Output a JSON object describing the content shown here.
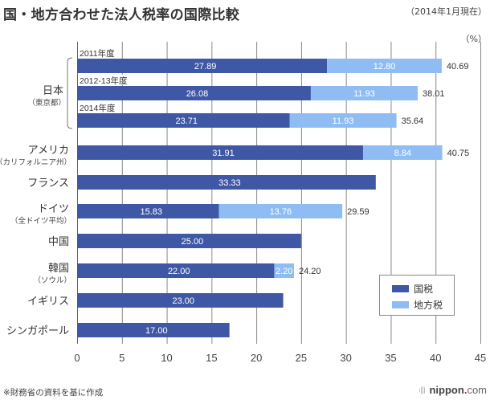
{
  "header": {
    "title": "国・地方合わせた法人税率の国際比較",
    "as_of": "（2014年1月現在）",
    "unit": "（%）"
  },
  "footer": {
    "source_note": "※財務省の資料を基に作成",
    "logo_brand": "nippon",
    "logo_dot": ".",
    "logo_tld": "com"
  },
  "colors": {
    "national": "#3f58a5",
    "local": "#8fbdf3",
    "grid": "#888888",
    "text": "#333333"
  },
  "chart_data": {
    "type": "bar",
    "orientation": "horizontal",
    "stacked": true,
    "title": "国・地方合わせた法人税率の国際比較",
    "subtitle": "（2014年1月現在）",
    "xlabel": "",
    "ylabel": "",
    "unit_label": "（%）",
    "xlim": [
      0,
      45
    ],
    "x_ticks": [
      0,
      5,
      10,
      15,
      20,
      25,
      30,
      35,
      40,
      45
    ],
    "grid": true,
    "legend": {
      "placement": "bottom-right",
      "entries": [
        {
          "key": "national",
          "label": "国税"
        },
        {
          "key": "local",
          "label": "地方税"
        }
      ]
    },
    "groups": [
      {
        "label": "日本",
        "sublabel": "（東京都）",
        "bracket": true,
        "rows": [
          0,
          1,
          2
        ]
      },
      {
        "label": "アメリカ",
        "sublabel": "（カリフォルニア州）",
        "rows": [
          3
        ]
      },
      {
        "label": "フランス",
        "sublabel": "",
        "rows": [
          4
        ]
      },
      {
        "label": "ドイツ",
        "sublabel": "（全ドイツ平均）",
        "rows": [
          5
        ]
      },
      {
        "label": "中国",
        "sublabel": "",
        "rows": [
          6
        ]
      },
      {
        "label": "韓国",
        "sublabel": "（ソウル）",
        "rows": [
          7
        ]
      },
      {
        "label": "イギリス",
        "sublabel": "",
        "rows": [
          8
        ]
      },
      {
        "label": "シンガポール",
        "sublabel": "",
        "rows": [
          9
        ]
      }
    ],
    "rows": [
      {
        "year_label": "2011年度",
        "national": 27.89,
        "local": 12.8,
        "total": 40.69
      },
      {
        "year_label": "2012-13年度",
        "national": 26.08,
        "local": 11.93,
        "total": 38.01
      },
      {
        "year_label": "2014年度",
        "national": 23.71,
        "local": 11.93,
        "total": 35.64
      },
      {
        "year_label": "",
        "national": 31.91,
        "local": 8.84,
        "total": 40.75
      },
      {
        "year_label": "",
        "national": 33.33,
        "local": null,
        "total": null
      },
      {
        "year_label": "",
        "national": 15.83,
        "local": 13.76,
        "total": 29.59
      },
      {
        "year_label": "",
        "national": 25.0,
        "local": null,
        "total": null
      },
      {
        "year_label": "",
        "national": 22.0,
        "local": 2.2,
        "total": 24.2
      },
      {
        "year_label": "",
        "national": 23.0,
        "local": null,
        "total": null
      },
      {
        "year_label": "",
        "national": 17.0,
        "local": null,
        "total": null
      }
    ],
    "value_labels": {
      "national": [
        "27.89",
        "26.08",
        "23.71",
        "31.91",
        "33.33",
        "15.83",
        "25.00",
        "22.00",
        "23.00",
        "17.00"
      ],
      "local": [
        "12.80",
        "11.93",
        "11.93",
        "8.84",
        "",
        "13.76",
        "",
        "2.20",
        "",
        ""
      ],
      "total": [
        "40.69",
        "38.01",
        "35.64",
        "40.75",
        "",
        "29.59",
        "",
        "24.20",
        "",
        ""
      ]
    },
    "tick_labels": [
      "0",
      "5",
      "10",
      "15",
      "20",
      "25",
      "30",
      "35",
      "40",
      "45"
    ]
  }
}
